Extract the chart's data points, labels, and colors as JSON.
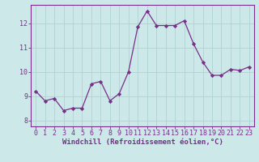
{
  "x": [
    0,
    1,
    2,
    3,
    4,
    5,
    6,
    7,
    8,
    9,
    10,
    11,
    12,
    13,
    14,
    15,
    16,
    17,
    18,
    19,
    20,
    21,
    22,
    23
  ],
  "y": [
    9.2,
    8.8,
    8.9,
    8.4,
    8.5,
    8.5,
    9.5,
    9.6,
    8.8,
    9.1,
    10.0,
    11.85,
    12.5,
    11.9,
    11.9,
    11.9,
    12.1,
    11.15,
    10.4,
    9.85,
    9.85,
    10.1,
    10.05,
    10.2
  ],
  "line_color": "#7b2d8b",
  "marker": "D",
  "marker_size": 2.2,
  "bg_color": "#cce8e8",
  "grid_color": "#aacece",
  "xlabel": "Windchill (Refroidissement éolien,°C)",
  "xlabel_color": "#7b2d8b",
  "tick_color": "#7b2d8b",
  "xlim": [
    -0.5,
    23.5
  ],
  "ylim": [
    7.75,
    12.75
  ],
  "yticks": [
    8,
    9,
    10,
    11,
    12
  ],
  "xticks": [
    0,
    1,
    2,
    3,
    4,
    5,
    6,
    7,
    8,
    9,
    10,
    11,
    12,
    13,
    14,
    15,
    16,
    17,
    18,
    19,
    20,
    21,
    22,
    23
  ],
  "spine_color": "#7b2d8b",
  "tick_font_size": 6.0,
  "label_font_size": 6.5,
  "line_width": 0.9
}
